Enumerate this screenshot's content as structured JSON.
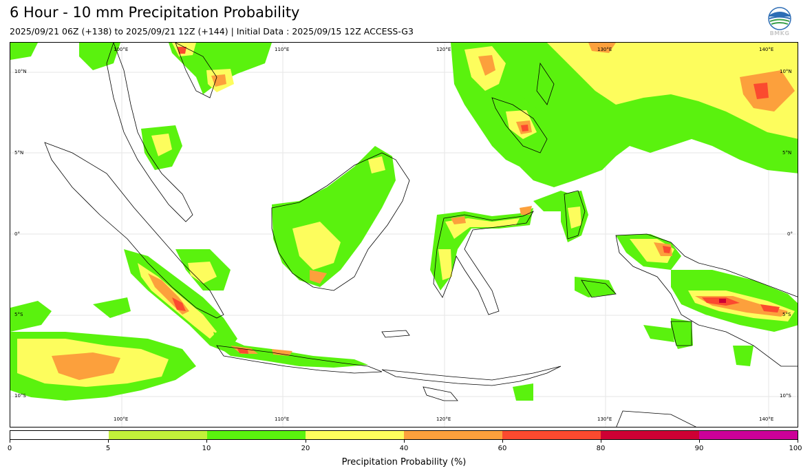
{
  "header": {
    "title": "6 Hour - 10 mm Precipitation Probability",
    "subtitle": "2025/09/21 06Z (+138) to 2025/09/21 12Z (+144) | Initial Data : 2025/09/15 12Z ACCESS-G3",
    "logo_text": "BMKG"
  },
  "map": {
    "lon_labels_top": [
      "100°E",
      "110°E",
      "120°E",
      "130°E",
      "140°E"
    ],
    "lon_labels_bottom": [
      "100°E",
      "110°E",
      "120°E",
      "130°E",
      "140°E"
    ],
    "lat_labels_left": [
      "10°N",
      "5°N",
      "0°",
      "5°S",
      "10°S"
    ],
    "lat_labels_right": [
      "10°N",
      "5°N",
      "0°",
      "5°S",
      "10°S"
    ],
    "lon_range": [
      94,
      143
    ],
    "lat_range": [
      -12,
      11.5
    ]
  },
  "colorbar": {
    "title": "Precipitation Probability (%)",
    "tick_labels": [
      "0",
      "5",
      "10",
      "20",
      "40",
      "60",
      "80",
      "90",
      "100"
    ],
    "colors": [
      "#ffffff",
      "#c2f03a",
      "#5af20e",
      "#fdfd5d",
      "#fca03c",
      "#fb4a2f",
      "#ce0034",
      "#cc0099"
    ]
  }
}
